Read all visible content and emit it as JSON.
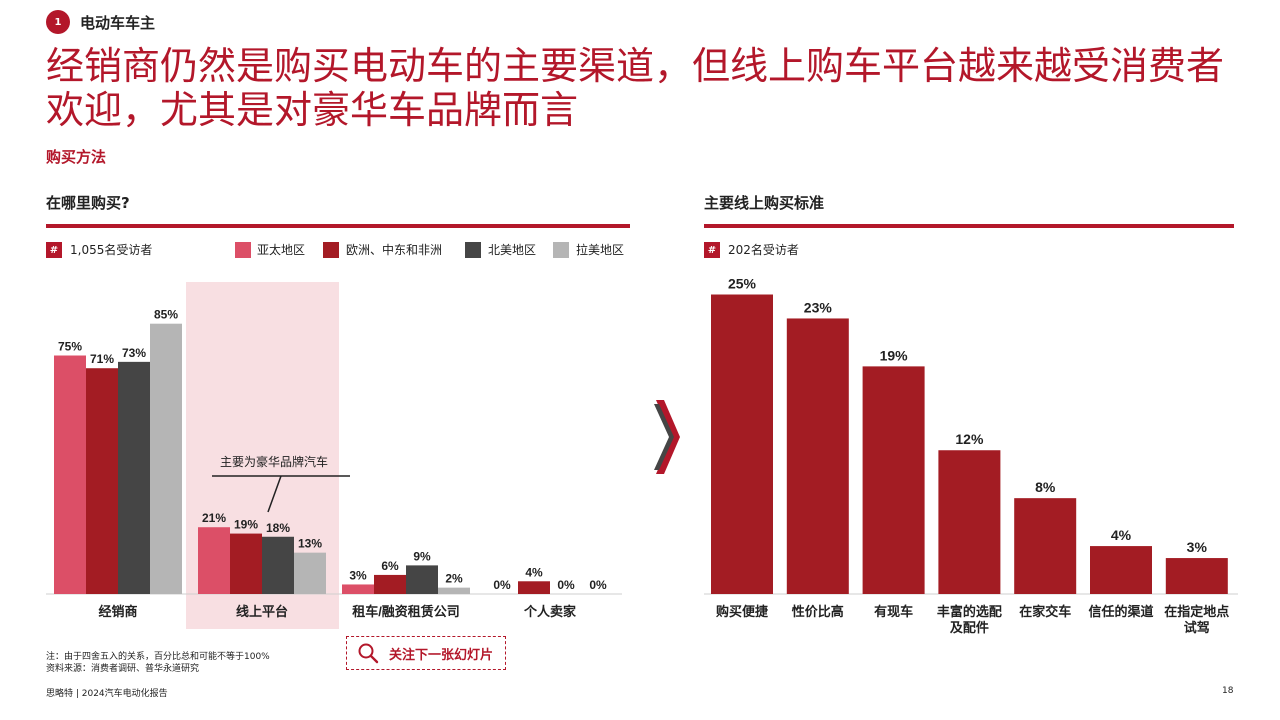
{
  "section": {
    "badge": "1",
    "title": "电动车车主"
  },
  "headline": "经销商仍然是购买电动车的主要渠道，但线上购车平台越来越受消费者欢迎，尤其是对豪华车品牌而言",
  "subhead": "购买方法",
  "colors": {
    "accent": "#b3172a",
    "apac": "#dc4f67",
    "emea": "#a31c23",
    "na": "#454545",
    "latam": "#b5b5b5",
    "highlight": "#f8dfe2"
  },
  "left_chart": {
    "title": "在哪里购买?",
    "respondents_badge": "#",
    "respondents": "1,055名受访者",
    "annotation": "主要为豪华品牌汽车"
  },
  "right_chart": {
    "title": "主要线上购买标准",
    "respondents_badge": "#",
    "respondents": "202名受访者"
  },
  "chart_data": [
    {
      "type": "bar",
      "title": "在哪里购买?",
      "categories": [
        "经销商",
        "线上平台",
        "租车/融资租赁公司",
        "个人卖家"
      ],
      "series": [
        {
          "name": "亚太地区",
          "color": "#dc4f67",
          "values": [
            75,
            21,
            3,
            0
          ],
          "labels": [
            "75%",
            "21%",
            "3%",
            "0%"
          ]
        },
        {
          "name": "欧洲、中东和非洲",
          "color": "#a31c23",
          "values": [
            71,
            19,
            6,
            4
          ],
          "labels": [
            "71%",
            "19%",
            "6%",
            "4%"
          ]
        },
        {
          "name": "北美地区",
          "color": "#454545",
          "values": [
            73,
            18,
            9,
            0
          ],
          "labels": [
            "73%",
            "18%",
            "9%",
            "0%"
          ]
        },
        {
          "name": "拉美地区",
          "color": "#b5b5b5",
          "values": [
            85,
            13,
            2,
            0
          ],
          "labels": [
            "85%",
            "13%",
            "2%",
            "0%"
          ]
        }
      ],
      "ylim": [
        0,
        100
      ],
      "highlight_category": "线上平台",
      "grid": false,
      "legend_placement": "top"
    },
    {
      "type": "bar",
      "title": "主要线上购买标准",
      "categories": [
        "购买便捷",
        "性价比高",
        "有现车",
        "丰富的选配及配件",
        "在家交车",
        "信任的渠道",
        "在指定地点试驾"
      ],
      "values": [
        25,
        23,
        19,
        12,
        8,
        4,
        3
      ],
      "labels": [
        "25%",
        "23%",
        "19%",
        "12%",
        "8%",
        "4%",
        "3%"
      ],
      "ylim": [
        0,
        25
      ],
      "grid": false
    }
  ],
  "callout": {
    "icon": "search-icon",
    "text": "关注下一张幻灯片"
  },
  "footnotes": {
    "note": "注：由于四舍五入的关系，百分比总和可能不等于100%",
    "source": "资料来源：消费者调研、普华永道研究"
  },
  "footer": "思略特 | 2024汽车电动化报告",
  "page_number": "18"
}
